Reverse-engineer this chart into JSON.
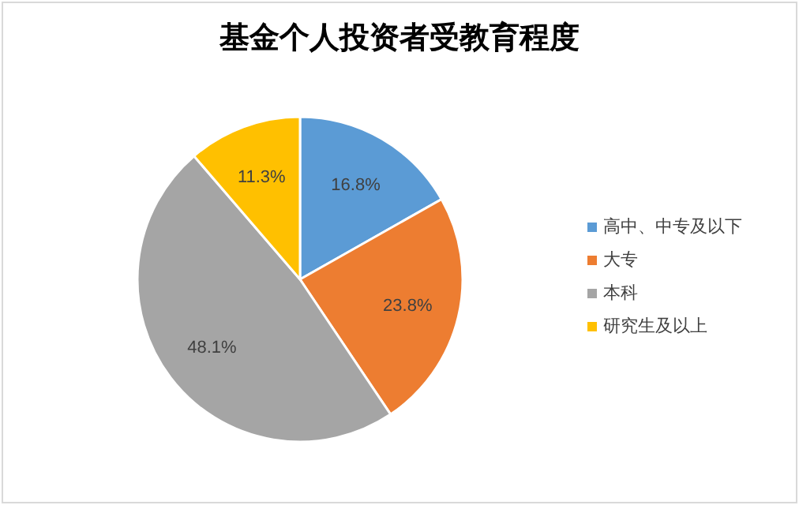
{
  "chart_data": {
    "type": "pie",
    "title": "基金个人投资者受教育程度",
    "categories": [
      "高中、中专及以下",
      "大专",
      "本科",
      "研究生及以上"
    ],
    "values": [
      16.8,
      23.8,
      48.1,
      11.3
    ],
    "colors": [
      "#5b9bd5",
      "#ed7d31",
      "#a5a5a5",
      "#ffc000"
    ],
    "value_labels": [
      "16.8%",
      "23.8%",
      "48.1%",
      "11.3%"
    ],
    "legend": "right"
  }
}
